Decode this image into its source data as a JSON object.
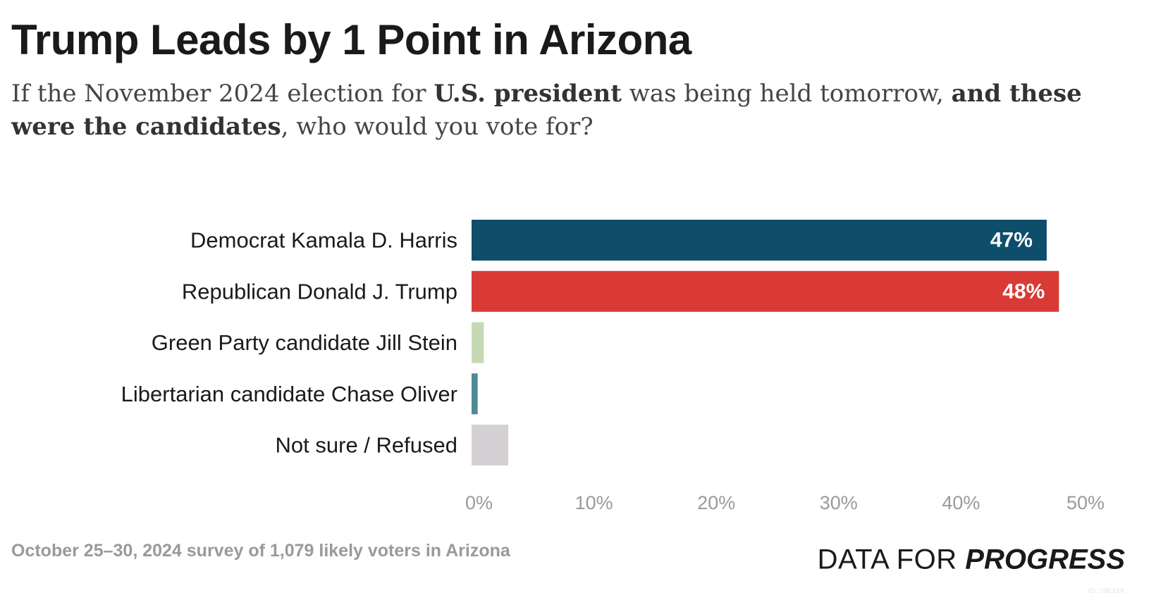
{
  "header": {
    "title": "Trump Leads by 1 Point in Arizona",
    "subtitle_parts": [
      {
        "text": "If the November 2024 election for ",
        "bold": false
      },
      {
        "text": "U.S. president",
        "bold": true
      },
      {
        "text": " was being held tomorrow, ",
        "bold": false
      },
      {
        "text": "and these were the candidates",
        "bold": true
      },
      {
        "text": ", who would you vote for?",
        "bold": false
      }
    ]
  },
  "chart_data": {
    "type": "bar",
    "orientation": "horizontal",
    "categories": [
      "Democrat Kamala D. Harris",
      "Republican Donald J. Trump",
      "Green Party candidate Jill Stein",
      "Libertarian candidate Chase Oliver",
      "Not sure / Refused"
    ],
    "values": [
      47,
      48,
      1,
      0.5,
      3
    ],
    "value_labels": [
      "47%",
      "48%",
      "",
      "",
      ""
    ],
    "colors": [
      "#0e4e6b",
      "#d93a35",
      "#c6d9b5",
      "#4c8a96",
      "#d5d0d4"
    ],
    "xlim": [
      0,
      50
    ],
    "xticks": [
      0,
      10,
      20,
      30,
      40,
      50
    ],
    "xtick_labels": [
      "0%",
      "10%",
      "20%",
      "30%",
      "40%",
      "50%"
    ],
    "grid": false
  },
  "footer": {
    "source": "October 25–30, 2024 survey of 1,079 likely voters in Arizona",
    "brand_light": "DATA FOR ",
    "brand_bold": "PROGRESS",
    "chart_id": "ID: 29E2XK"
  }
}
